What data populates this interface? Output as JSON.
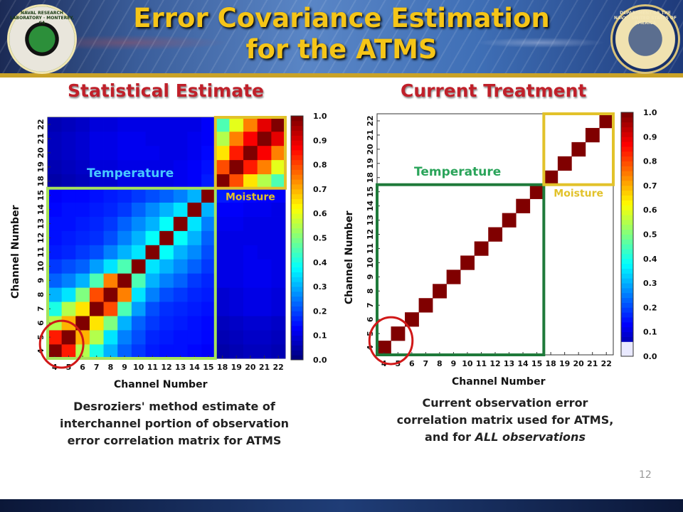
{
  "header": {
    "title_line1": "Error Covariance Estimation",
    "title_line2": "for the ATMS",
    "left_seal_text": "NAVAL RESEARCH LABORATORY · MONTEREY, CA",
    "right_seal_text": "DEPARTMENT OF THE NAVY · UNITED STATES OF AMERICA"
  },
  "left_panel": {
    "title": "Statistical Estimate",
    "x_axis_label": "Channel Number",
    "y_axis_label": "Channel Number",
    "region_temperature": "Temperature",
    "region_moisture": "Moisture",
    "caption_lines": [
      "Desroziers' method estimate of",
      "interchannel portion of observation",
      "error correlation matrix for ATMS"
    ]
  },
  "right_panel": {
    "title": "Current Treatment",
    "x_axis_label": "Channel Number",
    "y_axis_label": "Channel Number",
    "region_temperature": "Temperature",
    "region_moisture": "Moisture",
    "caption_line1": "Current observation error",
    "caption_line2": "correlation matrix used for ATMS,",
    "caption_line3_prefix": "and for ",
    "caption_line3_emph": "ALL observations"
  },
  "colors": {
    "temperature_box_left": "#a6e35a",
    "temperature_box_right": "#1e7a3a",
    "moisture_box": "#e2c22a",
    "highlight_circle": "#d01818",
    "title_color": "#f5c518",
    "section_title_color": "#c0202a"
  },
  "slide_number": "12",
  "chart_data": [
    {
      "type": "heatmap",
      "title": "Statistical Estimate",
      "xlabel": "Channel Number",
      "ylabel": "Channel Number",
      "x": [
        "4",
        "5",
        "6",
        "7",
        "8",
        "9",
        "10",
        "11",
        "12",
        "13",
        "14",
        "15",
        "18",
        "19",
        "20",
        "21",
        "22"
      ],
      "y": [
        "4",
        "5",
        "6",
        "7",
        "8",
        "9",
        "10",
        "11",
        "12",
        "13",
        "14",
        "15",
        "18",
        "19",
        "20",
        "21",
        "22"
      ],
      "colorbar": {
        "min": 0.0,
        "max": 1.0,
        "ticks": [
          "0.0",
          "0.1",
          "0.2",
          "0.3",
          "0.4",
          "0.5",
          "0.6",
          "0.7",
          "0.8",
          "0.9",
          "1.0"
        ]
      },
      "values": [
        [
          1.0,
          0.85,
          0.55,
          0.4,
          0.3,
          0.22,
          0.18,
          0.15,
          0.14,
          0.14,
          0.13,
          0.12,
          0.04,
          0.05,
          0.06,
          0.06,
          0.05
        ],
        [
          0.85,
          1.0,
          0.7,
          0.55,
          0.35,
          0.25,
          0.2,
          0.16,
          0.15,
          0.14,
          0.14,
          0.13,
          0.05,
          0.06,
          0.07,
          0.07,
          0.06
        ],
        [
          0.55,
          0.7,
          1.0,
          0.65,
          0.5,
          0.3,
          0.22,
          0.18,
          0.16,
          0.15,
          0.14,
          0.13,
          0.06,
          0.07,
          0.08,
          0.08,
          0.07
        ],
        [
          0.4,
          0.55,
          0.65,
          1.0,
          0.8,
          0.45,
          0.28,
          0.2,
          0.17,
          0.16,
          0.15,
          0.14,
          0.08,
          0.09,
          0.1,
          0.1,
          0.09
        ],
        [
          0.3,
          0.35,
          0.5,
          0.8,
          1.0,
          0.75,
          0.35,
          0.25,
          0.2,
          0.18,
          0.16,
          0.15,
          0.08,
          0.09,
          0.1,
          0.1,
          0.09
        ],
        [
          0.22,
          0.25,
          0.3,
          0.45,
          0.75,
          1.0,
          0.45,
          0.3,
          0.25,
          0.22,
          0.18,
          0.16,
          0.1,
          0.1,
          0.11,
          0.11,
          0.1
        ],
        [
          0.18,
          0.2,
          0.22,
          0.28,
          0.35,
          0.45,
          1.0,
          0.35,
          0.3,
          0.26,
          0.22,
          0.18,
          0.1,
          0.1,
          0.11,
          0.11,
          0.1
        ],
        [
          0.15,
          0.16,
          0.18,
          0.2,
          0.25,
          0.3,
          0.35,
          1.0,
          0.38,
          0.3,
          0.26,
          0.2,
          0.1,
          0.1,
          0.11,
          0.1,
          0.1
        ],
        [
          0.14,
          0.15,
          0.16,
          0.17,
          0.2,
          0.25,
          0.3,
          0.38,
          1.0,
          0.38,
          0.3,
          0.22,
          0.1,
          0.1,
          0.1,
          0.1,
          0.1
        ],
        [
          0.14,
          0.14,
          0.15,
          0.16,
          0.18,
          0.22,
          0.26,
          0.3,
          0.38,
          1.0,
          0.35,
          0.25,
          0.11,
          0.11,
          0.1,
          0.1,
          0.1
        ],
        [
          0.13,
          0.14,
          0.14,
          0.15,
          0.16,
          0.18,
          0.22,
          0.26,
          0.3,
          0.35,
          1.0,
          0.3,
          0.12,
          0.12,
          0.11,
          0.11,
          0.1
        ],
        [
          0.12,
          0.13,
          0.13,
          0.14,
          0.15,
          0.16,
          0.18,
          0.2,
          0.22,
          0.25,
          0.3,
          1.0,
          0.15,
          0.14,
          0.13,
          0.12,
          0.12
        ],
        [
          0.04,
          0.05,
          0.06,
          0.08,
          0.08,
          0.1,
          0.1,
          0.1,
          0.1,
          0.11,
          0.12,
          0.15,
          1.0,
          0.8,
          0.65,
          0.55,
          0.45
        ],
        [
          0.05,
          0.06,
          0.07,
          0.09,
          0.09,
          0.1,
          0.1,
          0.1,
          0.1,
          0.11,
          0.12,
          0.14,
          0.8,
          1.0,
          0.85,
          0.75,
          0.6
        ],
        [
          0.06,
          0.07,
          0.08,
          0.1,
          0.1,
          0.11,
          0.11,
          0.11,
          0.1,
          0.1,
          0.11,
          0.13,
          0.65,
          0.85,
          1.0,
          0.88,
          0.75
        ],
        [
          0.06,
          0.07,
          0.08,
          0.1,
          0.1,
          0.11,
          0.11,
          0.1,
          0.1,
          0.1,
          0.11,
          0.12,
          0.55,
          0.75,
          0.88,
          1.0,
          0.9
        ],
        [
          0.05,
          0.06,
          0.07,
          0.09,
          0.09,
          0.1,
          0.1,
          0.1,
          0.1,
          0.1,
          0.1,
          0.12,
          0.45,
          0.6,
          0.75,
          0.9,
          1.0
        ]
      ]
    },
    {
      "type": "heatmap",
      "title": "Current Treatment",
      "xlabel": "Channel Number",
      "ylabel": "Channel Number",
      "x": [
        "4",
        "5",
        "6",
        "7",
        "8",
        "9",
        "10",
        "11",
        "12",
        "13",
        "14",
        "15",
        "18",
        "19",
        "20",
        "21",
        "22"
      ],
      "y": [
        "4",
        "5",
        "6",
        "7",
        "8",
        "9",
        "10",
        "11",
        "12",
        "13",
        "14",
        "15",
        "18",
        "19",
        "20",
        "21",
        "22"
      ],
      "colorbar": {
        "min": 0.0,
        "max": 1.0,
        "ticks": [
          "0.0",
          "0.1",
          "0.2",
          "0.3",
          "0.4",
          "0.5",
          "0.6",
          "0.7",
          "0.8",
          "0.9",
          "1.0"
        ]
      },
      "values": "identity"
    }
  ]
}
